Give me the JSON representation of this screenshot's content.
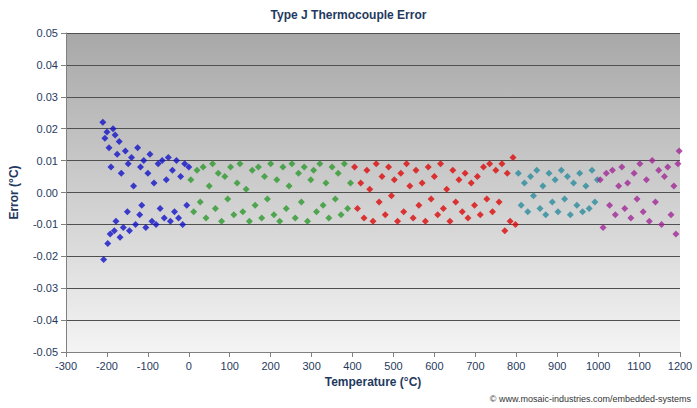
{
  "chart_data": {
    "type": "scatter",
    "title": "Type J Thermocouple Error",
    "x_label": "Temperature (°C)",
    "y_label": "Error (°C)",
    "annotation": "© www.mosaic-industries.com/embedded-systems",
    "marker": "diamond",
    "grid": true,
    "xlim": [
      -300,
      1200
    ],
    "xticks": [
      -300,
      -200,
      -100,
      0,
      100,
      200,
      300,
      400,
      500,
      600,
      700,
      800,
      900,
      1000,
      1100,
      1200
    ],
    "ylim": [
      -0.05,
      0.05
    ],
    "yticks": [
      -0.05,
      -0.04,
      -0.03,
      -0.02,
      -0.01,
      {
        "value": 0,
        "label": "0.00"
      },
      0.01,
      0.02,
      0.03,
      0.04,
      0.05
    ],
    "series": [
      {
        "color": "#1414c8",
        "x": [
          -210,
          -208,
          -205,
          -200,
          -198,
          -195,
          -192,
          -190,
          -185,
          -182,
          -180,
          -178,
          -175,
          -170,
          -168,
          -165,
          -160,
          -155,
          -150,
          -148,
          -145,
          -140,
          -135,
          -130,
          -125,
          -120,
          -118,
          -115,
          -110,
          -105,
          -100,
          -95,
          -90,
          -85,
          -80,
          -75,
          -70,
          -65,
          -60,
          -55,
          -50,
          -45,
          -40,
          -35,
          -30,
          -25,
          -20,
          -15,
          -10,
          -5,
          0
        ],
        "values": [
          0.022,
          -0.021,
          0.017,
          0.019,
          -0.016,
          0.014,
          -0.013,
          0.008,
          0.02,
          -0.012,
          0.018,
          -0.009,
          0.012,
          0.016,
          -0.014,
          0.006,
          -0.011,
          0.013,
          -0.006,
          0.009,
          -0.012,
          0.011,
          0.002,
          -0.01,
          0.014,
          -0.007,
          0.008,
          -0.004,
          0.01,
          -0.011,
          0.006,
          0.012,
          -0.009,
          0.003,
          -0.01,
          0.009,
          -0.005,
          0.01,
          -0.008,
          0.004,
          0.011,
          -0.009,
          0.007,
          -0.006,
          0.01,
          -0.008,
          0.005,
          -0.01,
          0.009,
          -0.004,
          0.008
        ]
      },
      {
        "color": "#2e9a2e",
        "x": [
          5,
          12,
          20,
          28,
          35,
          42,
          50,
          58,
          65,
          72,
          80,
          88,
          95,
          102,
          110,
          118,
          125,
          132,
          140,
          148,
          155,
          162,
          170,
          178,
          185,
          192,
          200,
          208,
          215,
          222,
          230,
          238,
          245,
          252,
          260,
          268,
          275,
          282,
          290,
          298,
          305,
          312,
          320,
          328,
          335,
          342,
          350,
          358,
          365,
          372,
          380,
          388,
          395
        ],
        "values": [
          0.004,
          -0.006,
          0.007,
          -0.003,
          0.008,
          -0.008,
          0.002,
          0.009,
          -0.005,
          0.006,
          -0.009,
          0.005,
          -0.002,
          0.008,
          -0.007,
          0.003,
          0.009,
          -0.006,
          0.001,
          -0.009,
          0.007,
          -0.004,
          0.008,
          -0.008,
          0.005,
          -0.002,
          0.009,
          -0.007,
          0.004,
          -0.009,
          0.008,
          -0.005,
          0.002,
          0.009,
          -0.008,
          0.006,
          -0.003,
          0.008,
          -0.009,
          0.004,
          0.007,
          -0.006,
          0.009,
          -0.004,
          0.003,
          -0.008,
          0.008,
          -0.002,
          0.006,
          -0.007,
          0.009,
          -0.005,
          0.003
        ]
      },
      {
        "color": "#dc0a0a",
        "x": [
          405,
          412,
          420,
          428,
          435,
          442,
          450,
          458,
          465,
          472,
          480,
          488,
          495,
          502,
          510,
          518,
          525,
          532,
          540,
          548,
          555,
          562,
          570,
          578,
          585,
          592,
          600,
          608,
          615,
          622,
          630,
          638,
          645,
          652,
          660,
          668,
          675,
          682,
          690,
          698,
          705,
          712,
          720,
          728,
          735,
          742,
          750,
          758,
          765,
          772,
          778,
          785,
          792,
          798
        ],
        "values": [
          0.008,
          -0.005,
          0.003,
          -0.008,
          0.007,
          0.001,
          -0.009,
          0.009,
          -0.003,
          0.005,
          -0.007,
          0.008,
          -0.001,
          0.004,
          -0.009,
          0.006,
          -0.006,
          0.009,
          0.002,
          -0.008,
          0.007,
          -0.004,
          0.003,
          -0.009,
          0.008,
          -0.002,
          0.005,
          -0.007,
          0.009,
          -0.005,
          0.001,
          -0.009,
          0.007,
          -0.003,
          0.004,
          -0.006,
          0.006,
          -0.008,
          0.003,
          -0.004,
          0.005,
          -0.007,
          0.008,
          -0.002,
          0.009,
          -0.006,
          0.007,
          -0.003,
          0.009,
          -0.012,
          0.006,
          -0.009,
          0.011,
          -0.01
        ]
      },
      {
        "color": "#2a8c9c",
        "x": [
          805,
          812,
          820,
          828,
          835,
          842,
          850,
          858,
          865,
          872,
          880,
          888,
          895,
          902,
          910,
          918,
          925,
          932,
          940,
          948,
          955,
          962,
          970,
          978,
          985,
          992,
          998
        ],
        "values": [
          0.006,
          -0.004,
          0.003,
          -0.006,
          0.005,
          -0.001,
          0.007,
          -0.005,
          0.002,
          -0.007,
          0.006,
          -0.003,
          0.004,
          -0.006,
          0.007,
          -0.002,
          0.005,
          -0.007,
          0.003,
          -0.004,
          0.006,
          -0.006,
          0.002,
          -0.005,
          0.007,
          -0.003,
          0.004
        ]
      },
      {
        "color": "#a02896",
        "x": [
          1005,
          1012,
          1020,
          1028,
          1035,
          1042,
          1050,
          1058,
          1065,
          1072,
          1080,
          1088,
          1095,
          1102,
          1110,
          1118,
          1125,
          1132,
          1140,
          1148,
          1155,
          1162,
          1170,
          1178,
          1185,
          1190,
          1195,
          1198
        ],
        "values": [
          0.004,
          -0.011,
          0.006,
          -0.004,
          0.007,
          -0.007,
          0.002,
          0.008,
          -0.005,
          0.003,
          -0.008,
          0.006,
          -0.002,
          0.009,
          -0.006,
          0.004,
          -0.009,
          0.01,
          -0.003,
          0.007,
          -0.01,
          0.005,
          0.008,
          -0.007,
          0.002,
          -0.013,
          0.009,
          0.013
        ]
      }
    ]
  }
}
